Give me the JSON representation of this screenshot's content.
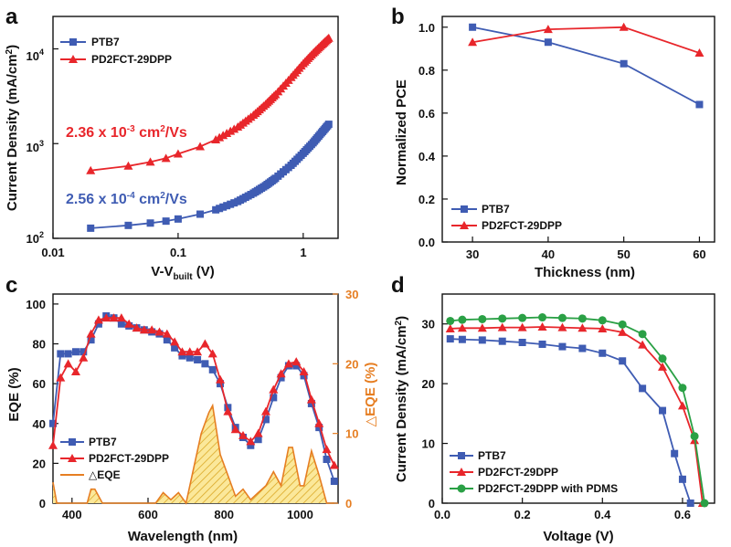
{
  "colors": {
    "blue": "#3f5cb3",
    "red": "#e8262b",
    "green": "#2aa045",
    "orange": "#e67e22",
    "hatch": "#f2d24b"
  },
  "panels": {
    "a": {
      "letter": "a",
      "xlabel_main": "V-V",
      "xlabel_sub": "built",
      "xlabel_unit": " (V)",
      "ylabel": "Current Density (mA/cm",
      "ylabel_sup": "2",
      "ylabel_close": ")",
      "xticks": [
        "0.01",
        "0.1",
        "1"
      ],
      "yticks": [
        {
          "base": "10",
          "exp": "2"
        },
        {
          "base": "10",
          "exp": "3"
        },
        {
          "base": "10",
          "exp": "4"
        }
      ],
      "legend": [
        "PTB7",
        "PD2FCT-29DPP"
      ],
      "annotations": [
        {
          "pre": "2.36 x 10",
          "exp": "-3",
          "mid": " cm",
          "exp2": "2",
          "post": "/Vs"
        },
        {
          "pre": "2.56 x 10",
          "exp": "-4",
          "mid": " cm",
          "exp2": "2",
          "post": "/Vs"
        }
      ]
    },
    "b": {
      "letter": "b",
      "xlabel": "Thickness (nm)",
      "ylabel": "Normalized PCE",
      "xticks": [
        "30",
        "40",
        "50",
        "60"
      ],
      "yticks": [
        "0.0",
        "0.2",
        "0.4",
        "0.6",
        "0.8",
        "1.0"
      ],
      "legend": [
        "PTB7",
        "PD2FCT-29DPP"
      ]
    },
    "c": {
      "letter": "c",
      "xlabel": "Wavelength (nm)",
      "ylabel": "EQE (%)",
      "ylabel2": "△EQE (%)",
      "xticks": [
        "400",
        "600",
        "800",
        "1000"
      ],
      "yticks": [
        "0",
        "20",
        "40",
        "60",
        "80",
        "100"
      ],
      "yticks2": [
        "0",
        "10",
        "20",
        "30"
      ],
      "legend": [
        "PTB7",
        "PD2FCT-29DPP",
        "△EQE"
      ]
    },
    "d": {
      "letter": "d",
      "xlabel": "Voltage (V)",
      "ylabel": "Current Density (mA/cm",
      "ylabel_sup": "2",
      "ylabel_close": ")",
      "xticks": [
        "0.0",
        "0.2",
        "0.4",
        "0.6"
      ],
      "yticks": [
        "0",
        "10",
        "20",
        "30"
      ],
      "legend": [
        "PTB7",
        "PD2FCT-29DPP",
        "PD2FCT-29DPP with PDMS"
      ]
    }
  },
  "chart_data": [
    {
      "panel": "a",
      "type": "scatter",
      "xscale": "log",
      "yscale": "log",
      "xlim": [
        0.01,
        1.9
      ],
      "ylim": [
        100,
        22000
      ],
      "series": [
        {
          "name": "PTB7",
          "x": [
            0.02,
            0.04,
            0.06,
            0.08,
            0.1,
            0.15,
            0.2,
            0.3,
            0.4,
            0.5,
            0.6,
            0.8,
            1.0,
            1.2,
            1.4,
            1.6
          ],
          "y": [
            128,
            137,
            145,
            152,
            160,
            180,
            200,
            245,
            300,
            360,
            430,
            590,
            790,
            1020,
            1300,
            1600
          ]
        },
        {
          "name": "PD2FCT-29DPP",
          "x": [
            0.02,
            0.04,
            0.06,
            0.08,
            0.1,
            0.15,
            0.2,
            0.3,
            0.4,
            0.5,
            0.6,
            0.8,
            1.0,
            1.2,
            1.4,
            1.6
          ],
          "y": [
            520,
            580,
            640,
            700,
            780,
            930,
            1100,
            1500,
            2000,
            2600,
            3300,
            5000,
            7000,
            9000,
            11000,
            13000
          ]
        }
      ]
    },
    {
      "panel": "b",
      "type": "line",
      "xlim": [
        26,
        62
      ],
      "ylim": [
        0,
        1.05
      ],
      "x": [
        30,
        40,
        50,
        60
      ],
      "series": [
        {
          "name": "PTB7",
          "values": [
            1.0,
            0.93,
            0.83,
            0.64
          ]
        },
        {
          "name": "PD2FCT-29DPP",
          "values": [
            0.93,
            0.99,
            1.0,
            0.88
          ]
        }
      ]
    },
    {
      "panel": "c",
      "type": "line",
      "xlim": [
        350,
        1100
      ],
      "ylim": [
        0,
        105
      ],
      "y2lim": [
        0,
        30
      ],
      "series": [
        {
          "name": "PTB7",
          "x": [
            350,
            370,
            390,
            410,
            430,
            450,
            470,
            490,
            510,
            530,
            550,
            570,
            590,
            610,
            630,
            650,
            670,
            690,
            710,
            730,
            750,
            770,
            790,
            810,
            830,
            850,
            870,
            890,
            910,
            930,
            950,
            970,
            990,
            1010,
            1030,
            1050,
            1070,
            1090
          ],
          "y": [
            40,
            75,
            75,
            76,
            76,
            82,
            90,
            94,
            93,
            90,
            89,
            88,
            87,
            86,
            85,
            82,
            78,
            74,
            73,
            72,
            70,
            67,
            60,
            48,
            38,
            33,
            29,
            32,
            42,
            53,
            63,
            69,
            69,
            64,
            50,
            38,
            22,
            11
          ]
        },
        {
          "name": "PD2FCT-29DPP",
          "x": [
            350,
            370,
            390,
            410,
            430,
            450,
            470,
            490,
            510,
            530,
            550,
            570,
            590,
            610,
            630,
            650,
            670,
            690,
            710,
            730,
            750,
            770,
            790,
            810,
            830,
            850,
            870,
            890,
            910,
            930,
            950,
            970,
            990,
            1010,
            1030,
            1050,
            1070,
            1090
          ],
          "y": [
            29,
            63,
            70,
            66,
            73,
            85,
            92,
            93,
            93,
            93,
            90,
            88,
            87,
            87,
            86,
            85,
            81,
            76,
            76,
            76,
            80,
            75,
            62,
            46,
            37,
            34,
            31,
            35,
            46,
            57,
            65,
            70,
            71,
            66,
            52,
            40,
            27,
            19
          ]
        },
        {
          "name": "△EQE",
          "axis": "right",
          "x": [
            350,
            360,
            380,
            420,
            440,
            450,
            460,
            480,
            620,
            640,
            660,
            680,
            700,
            720,
            740,
            760,
            770,
            790,
            810,
            830,
            850,
            870,
            890,
            910,
            930,
            950,
            970,
            980,
            1000,
            1010,
            1030,
            1050,
            1070,
            1090
          ],
          "y": [
            3,
            0,
            0,
            0,
            0,
            2,
            2,
            0,
            0,
            1.5,
            0.5,
            1.5,
            0,
            5,
            10,
            13,
            14,
            7,
            4,
            1,
            2,
            0.5,
            1.5,
            2.5,
            4.5,
            2.5,
            8,
            8,
            2.5,
            2.5,
            7.5,
            4,
            0,
            0
          ]
        }
      ]
    },
    {
      "panel": "d",
      "type": "line",
      "xlim": [
        0,
        0.68
      ],
      "ylim": [
        0,
        35
      ],
      "series": [
        {
          "name": "PTB7",
          "x": [
            0.02,
            0.05,
            0.1,
            0.15,
            0.2,
            0.25,
            0.3,
            0.35,
            0.4,
            0.45,
            0.5,
            0.55,
            0.58,
            0.6,
            0.62
          ],
          "y": [
            27.5,
            27.4,
            27.3,
            27.1,
            26.9,
            26.6,
            26.2,
            25.9,
            25.1,
            23.8,
            19.2,
            15.5,
            8.3,
            4.0,
            0
          ]
        },
        {
          "name": "PD2FCT-29DPP",
          "x": [
            0.02,
            0.05,
            0.1,
            0.15,
            0.2,
            0.25,
            0.3,
            0.35,
            0.4,
            0.45,
            0.5,
            0.55,
            0.6,
            0.63,
            0.65
          ],
          "y": [
            29.2,
            29.3,
            29.3,
            29.4,
            29.4,
            29.5,
            29.4,
            29.3,
            29.2,
            28.6,
            26.5,
            22.8,
            16.3,
            10.5,
            0
          ]
        },
        {
          "name": "PD2FCT-29DPP with PDMS",
          "x": [
            0.02,
            0.05,
            0.1,
            0.15,
            0.2,
            0.25,
            0.3,
            0.35,
            0.4,
            0.45,
            0.5,
            0.55,
            0.6,
            0.63,
            0.655
          ],
          "y": [
            30.5,
            30.7,
            30.8,
            30.9,
            31.0,
            31.1,
            31.0,
            30.9,
            30.6,
            29.9,
            28.3,
            24.2,
            19.3,
            11.2,
            0
          ]
        }
      ]
    }
  ]
}
